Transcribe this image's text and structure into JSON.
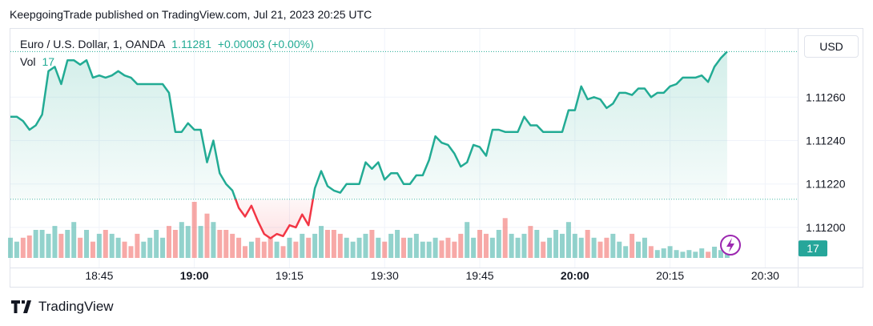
{
  "header": {
    "published": "KeepgoingTrade published on TradingView.com, Jul 21, 2023 20:25 UTC",
    "brand": "TradingView"
  },
  "chart_data": {
    "type": "line",
    "last_change": "+0.00003 (+0.00%)",
    "currency": "USD",
    "x": [
      "18:31",
      "18:32",
      "18:33",
      "18:34",
      "18:35",
      "18:36",
      "18:37",
      "18:38",
      "18:39",
      "18:40",
      "18:41",
      "18:42",
      "18:43",
      "18:44",
      "18:45",
      "18:46",
      "18:47",
      "18:48",
      "18:49",
      "18:50",
      "18:51",
      "18:52",
      "18:53",
      "18:54",
      "18:55",
      "18:56",
      "18:57",
      "18:58",
      "18:59",
      "19:00",
      "19:01",
      "19:02",
      "19:03",
      "19:04",
      "19:05",
      "19:06",
      "19:07",
      "19:08",
      "19:09",
      "19:10",
      "19:11",
      "19:12",
      "19:13",
      "19:14",
      "19:15",
      "19:16",
      "19:17",
      "19:18",
      "19:19",
      "19:20",
      "19:21",
      "19:22",
      "19:23",
      "19:24",
      "19:25",
      "19:26",
      "19:27",
      "19:28",
      "19:29",
      "19:30",
      "19:31",
      "19:32",
      "19:33",
      "19:34",
      "19:35",
      "19:36",
      "19:37",
      "19:38",
      "19:39",
      "19:40",
      "19:41",
      "19:42",
      "19:43",
      "19:44",
      "19:45",
      "19:46",
      "19:47",
      "19:48",
      "19:49",
      "19:50",
      "19:51",
      "19:52",
      "19:53",
      "19:54",
      "19:55",
      "19:56",
      "19:57",
      "19:58",
      "19:59",
      "20:00",
      "20:01",
      "20:02",
      "20:03",
      "20:04",
      "20:05",
      "20:06",
      "20:07",
      "20:08",
      "20:09",
      "20:10",
      "20:11",
      "20:12",
      "20:13",
      "20:14",
      "20:15",
      "20:16",
      "20:17",
      "20:18",
      "20:19",
      "20:20",
      "20:21",
      "20:22",
      "20:23",
      "20:24"
    ],
    "xlim": [
      "18:31",
      "20:35"
    ],
    "xticks": [
      "18:45",
      "19:00",
      "19:15",
      "19:30",
      "19:45",
      "20:00",
      "20:15",
      "20:30"
    ],
    "ylim": [
      1.11183,
      1.1129
    ],
    "yticks": [
      {
        "value": 1.112,
        "label": "1.11200"
      },
      {
        "value": 1.1122,
        "label": "1.11220"
      },
      {
        "value": 1.1124,
        "label": "1.11240"
      },
      {
        "value": 1.1126,
        "label": "1.11260"
      }
    ],
    "y2lim": [
      0,
      410
    ],
    "baseline": 1.11213,
    "grid": true,
    "series": [
      {
        "name": "Euro / U.S. Dollar, 1, OANDA",
        "type": "line",
        "color": "#22ab94",
        "down_color": "#f23645",
        "values": [
          1.11251,
          1.11251,
          1.11249,
          1.11245,
          1.11247,
          1.11252,
          1.11272,
          1.11274,
          1.11266,
          1.11277,
          1.11277,
          1.11275,
          1.11277,
          1.11269,
          1.1127,
          1.11269,
          1.1127,
          1.11272,
          1.1127,
          1.11269,
          1.11266,
          1.11266,
          1.11266,
          1.11266,
          1.11266,
          1.11262,
          1.11244,
          1.11244,
          1.11248,
          1.11245,
          1.11245,
          1.1123,
          1.1124,
          1.11225,
          1.1122,
          1.11217,
          1.11209,
          1.11205,
          1.1121,
          1.11203,
          1.11197,
          1.11195,
          1.11197,
          1.11196,
          1.11201,
          1.112,
          1.11206,
          1.11201,
          1.11218,
          1.11226,
          1.11219,
          1.11217,
          1.11216,
          1.1122,
          1.1122,
          1.1122,
          1.1123,
          1.11227,
          1.1123,
          1.11222,
          1.11225,
          1.11225,
          1.1122,
          1.1122,
          1.11224,
          1.11224,
          1.11231,
          1.11242,
          1.11239,
          1.11238,
          1.11234,
          1.11228,
          1.1123,
          1.11238,
          1.11237,
          1.11233,
          1.11245,
          1.11245,
          1.11244,
          1.11244,
          1.11244,
          1.11251,
          1.11247,
          1.11247,
          1.11244,
          1.11244,
          1.11244,
          1.11244,
          1.11254,
          1.11254,
          1.11265,
          1.11259,
          1.1126,
          1.11259,
          1.11255,
          1.11257,
          1.11262,
          1.11262,
          1.11261,
          1.11264,
          1.11264,
          1.1126,
          1.11262,
          1.11262,
          1.11265,
          1.11266,
          1.11269,
          1.11269,
          1.11269,
          1.1127,
          1.11267,
          1.11274,
          1.11278,
          1.11281
        ]
      },
      {
        "name": "Vol",
        "type": "bar",
        "axis": "y2",
        "color": "#26a69a",
        "down_color": "#ef5350",
        "values": [
          36,
          29,
          36,
          40,
          50,
          50,
          43,
          57,
          43,
          50,
          64,
          36,
          50,
          29,
          43,
          50,
          43,
          36,
          29,
          21,
          43,
          29,
          36,
          50,
          36,
          57,
          50,
          64,
          57,
          100,
          57,
          79,
          64,
          50,
          50,
          43,
          36,
          21,
          29,
          36,
          29,
          36,
          29,
          21,
          36,
          29,
          43,
          36,
          43,
          57,
          50,
          50,
          43,
          36,
          29,
          36,
          43,
          50,
          36,
          29,
          43,
          50,
          36,
          36,
          43,
          29,
          29,
          36,
          31,
          36,
          29,
          43,
          64,
          36,
          50,
          43,
          36,
          50,
          71,
          43,
          36,
          43,
          57,
          50,
          29,
          36,
          50,
          43,
          64,
          43,
          36,
          50,
          36,
          29,
          36,
          43,
          29,
          21,
          43,
          29,
          36,
          21,
          14,
          17,
          21,
          14,
          11,
          14,
          11,
          17,
          11,
          20,
          14,
          17
        ]
      }
    ]
  }
}
